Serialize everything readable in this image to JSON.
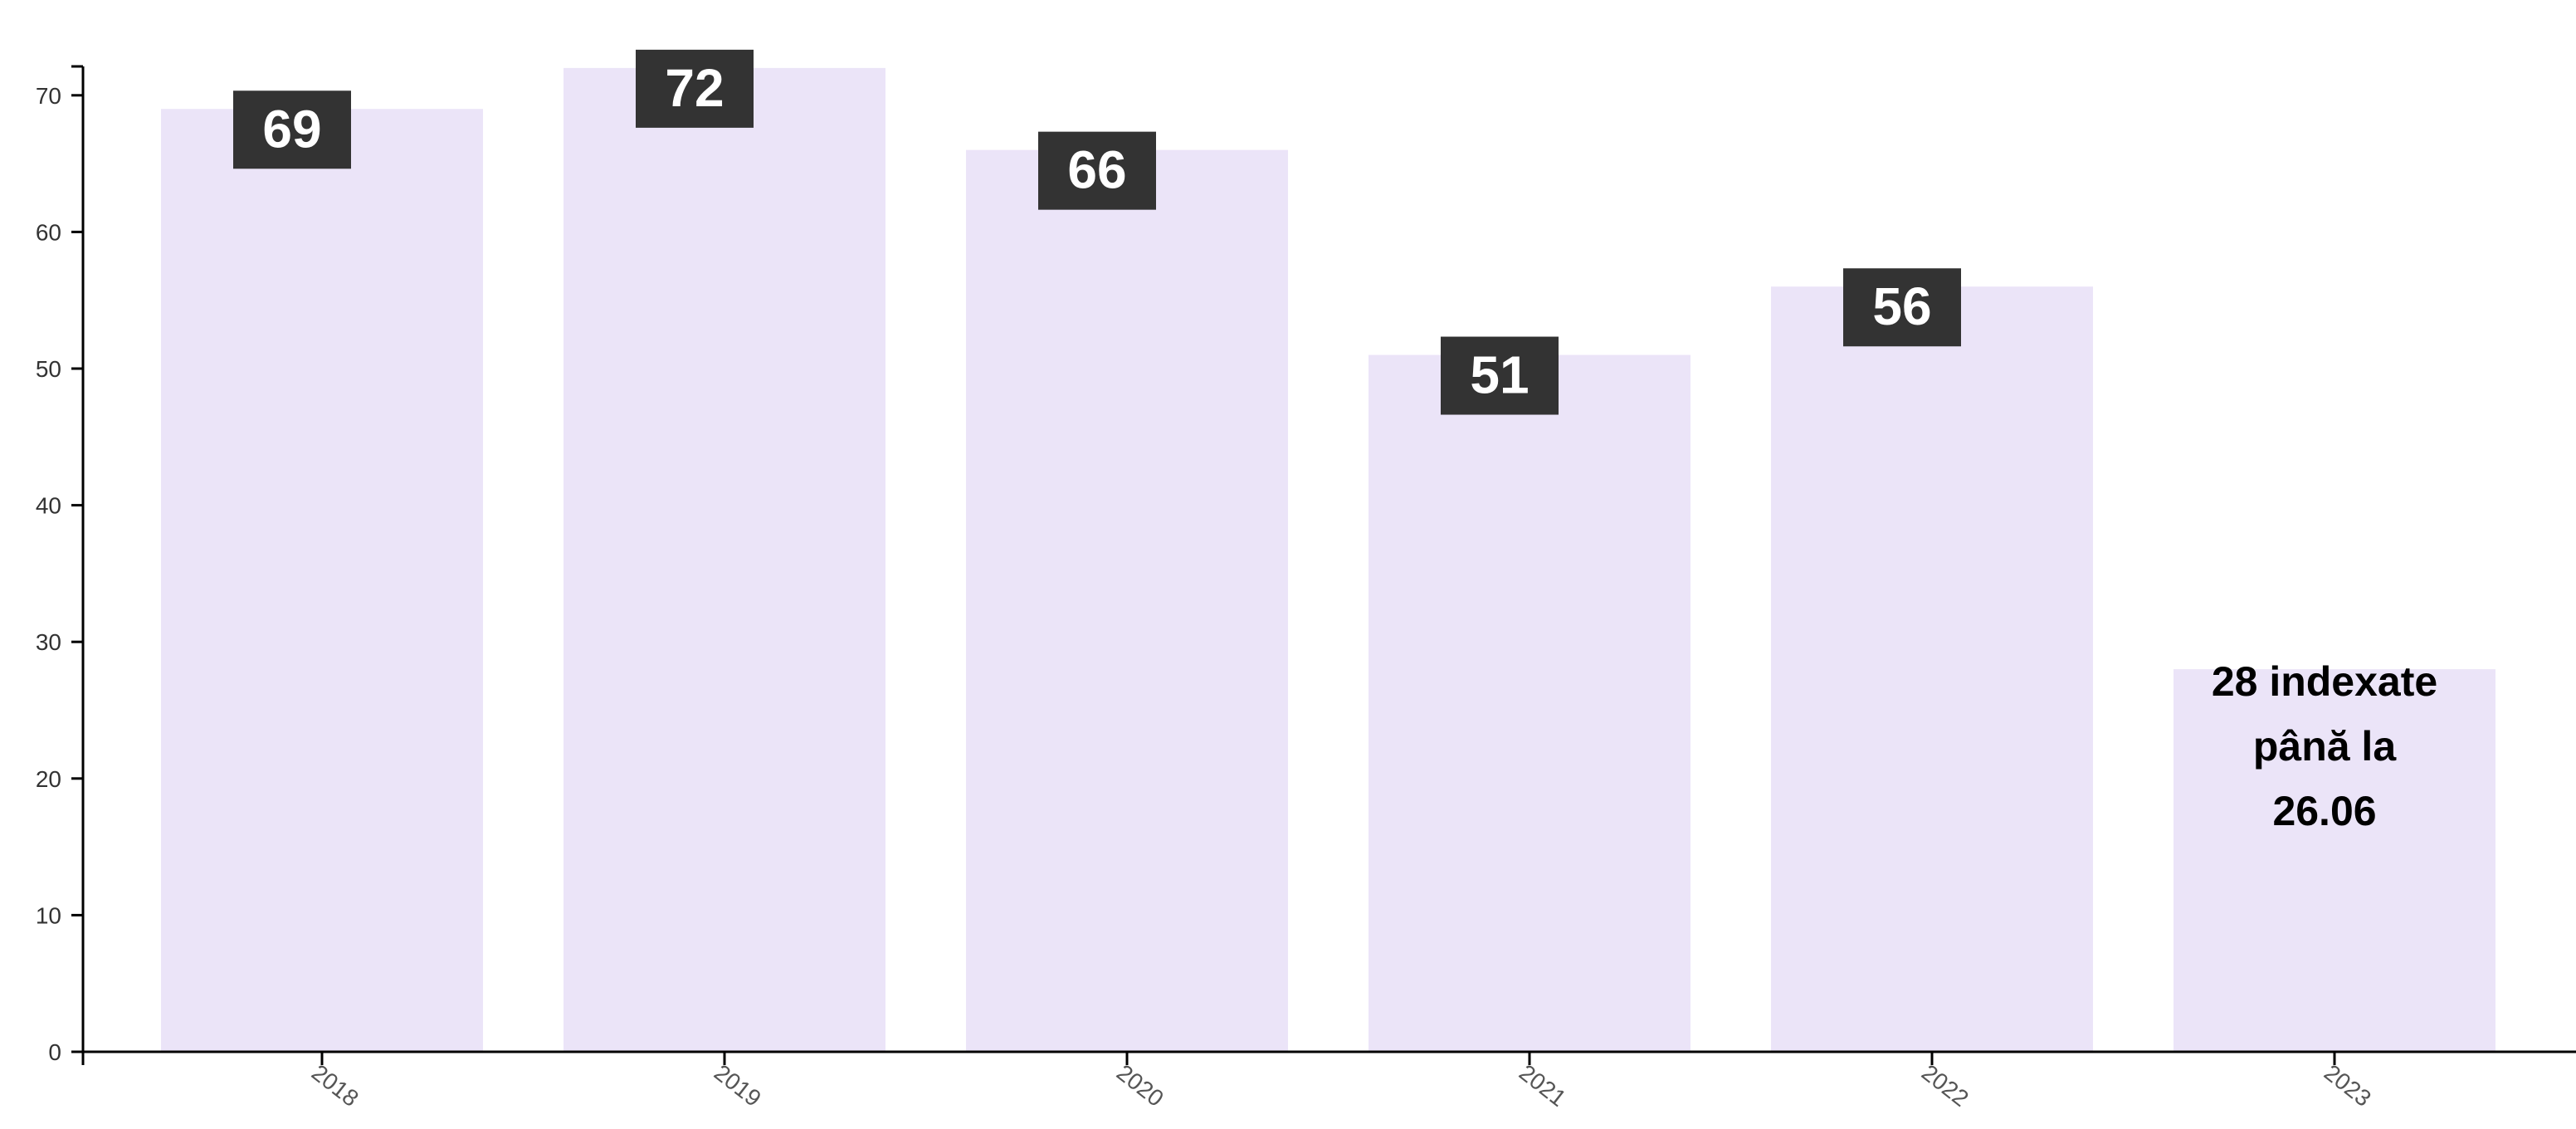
{
  "chart_data": {
    "type": "bar",
    "categories": [
      "2018",
      "2019",
      "2020",
      "2021",
      "2022",
      "2023"
    ],
    "values": [
      69,
      72,
      66,
      51,
      56,
      28
    ],
    "data_labels": [
      "69",
      "72",
      "66",
      "51",
      "56",
      ""
    ],
    "annotation": {
      "category": "2023",
      "lines": [
        "28 indexate",
        "până la",
        "26.06"
      ]
    },
    "title": "",
    "xlabel": "",
    "ylabel": "",
    "ylim": [
      0,
      72
    ],
    "yticks": [
      0,
      10,
      20,
      30,
      40,
      50,
      60,
      70
    ],
    "grid": false,
    "legend": "none",
    "colors": {
      "bar": "#ebe4f8",
      "label_box": "#333333",
      "label_text": "#ffffff",
      "axis": "#000000",
      "tick_text": "#333333",
      "x_tick_text": "#555555",
      "note_text": "#000000"
    }
  }
}
